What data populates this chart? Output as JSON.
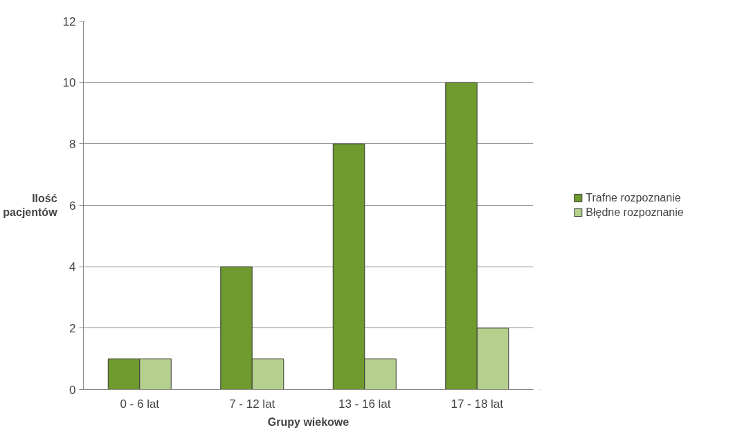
{
  "chart_data": {
    "type": "bar",
    "xlabel": "Grupy wiekowe",
    "ylabel": "Ilość pacjentów",
    "categories": [
      "0 - 6 lat",
      "7 - 12 lat",
      "13 - 16 lat",
      "17 - 18 lat"
    ],
    "series": [
      {
        "name": "Trafne rozpoznanie",
        "color": "#6e9a2e",
        "values": [
          1,
          4,
          8,
          10
        ]
      },
      {
        "name": "Błędne rozpoznanie",
        "color": "#b5cf8c",
        "values": [
          1,
          1,
          1,
          2
        ]
      }
    ],
    "ylim": [
      0,
      12
    ],
    "yticks": [
      0,
      2,
      4,
      6,
      8,
      10,
      12
    ],
    "grid": "y",
    "legend": "right"
  }
}
